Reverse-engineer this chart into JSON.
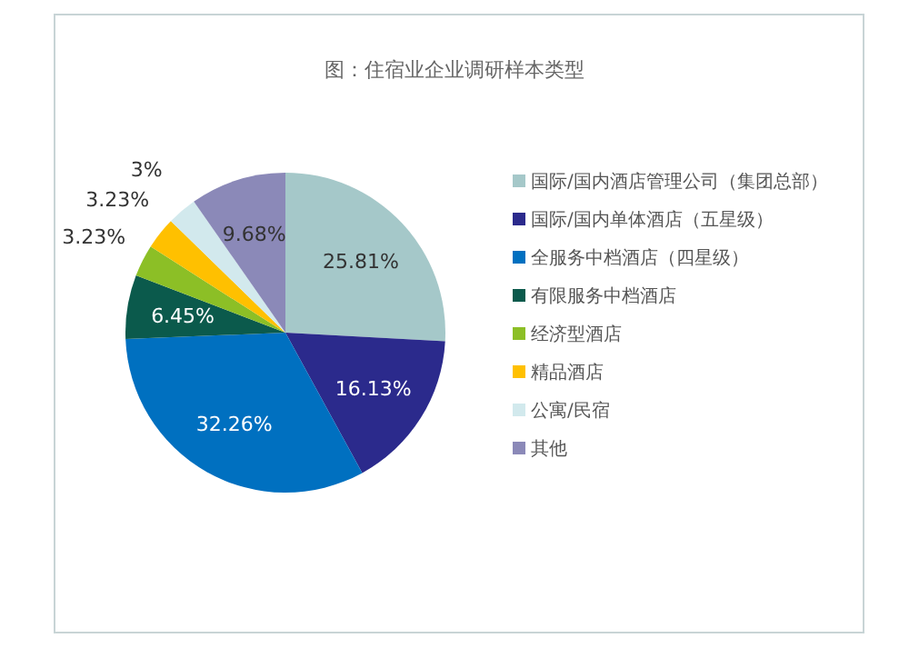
{
  "chart_data": {
    "type": "pie",
    "title": "图：住宿业企业调研样本类型",
    "categories": [
      "国际/国内酒店管理公司（集团总部）",
      "国际/国内单体酒店（五星级）",
      "全服务中档酒店（四星级）",
      "有限服务中档酒店",
      "经济型酒店",
      "精品酒店",
      "公寓/民宿",
      "其他"
    ],
    "values": [
      25.81,
      16.13,
      32.26,
      6.45,
      3.23,
      3.23,
      3,
      9.68
    ],
    "value_labels": [
      "25.81%",
      "16.13%",
      "32.26%",
      "6.45%",
      "3.23%",
      "3.23%",
      "3%",
      "9.68%"
    ],
    "colors": [
      "#a5c8c9",
      "#2b2a8c",
      "#0070c0",
      "#0b5a4c",
      "#8cbf26",
      "#ffc000",
      "#d2e9ed",
      "#8b89b8"
    ],
    "legend": "right"
  }
}
